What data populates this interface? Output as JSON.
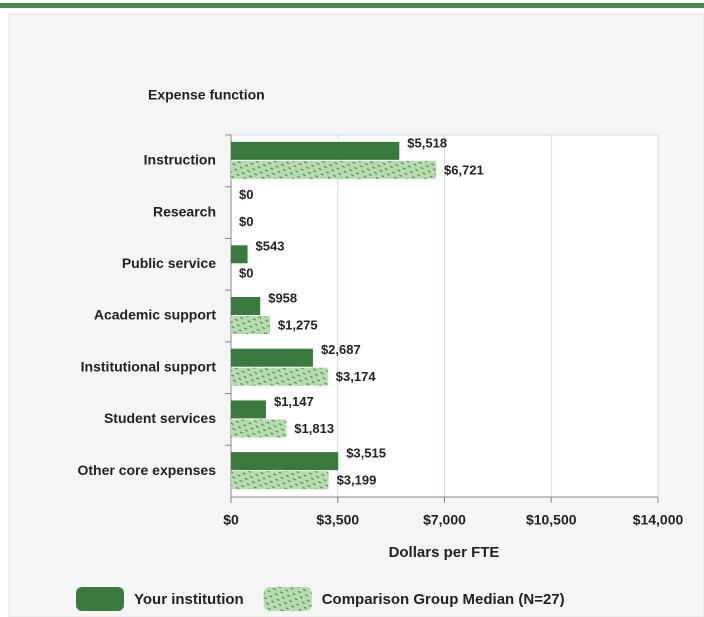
{
  "chart_data": {
    "type": "hbar",
    "y_axis_title": "Expense function",
    "x_axis_title": "Dollars per FTE",
    "categories": [
      "Instruction",
      "Research",
      "Public service",
      "Academic support",
      "Institutional support",
      "Student services",
      "Other core expenses"
    ],
    "series": [
      {
        "name": "Your institution",
        "color": "#3b7a3f",
        "values": [
          5518,
          0,
          543,
          958,
          2687,
          1147,
          3515
        ],
        "value_labels": [
          "$5,518",
          "$0",
          "$543",
          "$958",
          "$2,687",
          "$1,147",
          "$3,515"
        ]
      },
      {
        "name": "Comparison Group Median (N=27)",
        "color": "#b5dbae",
        "values": [
          6721,
          0,
          0,
          1275,
          3174,
          1813,
          3199
        ],
        "value_labels": [
          "$6,721",
          "$0",
          "$0",
          "$1,275",
          "$3,174",
          "$1,813",
          "$3,199"
        ]
      }
    ],
    "xlim": [
      0,
      14000
    ],
    "xticks": [
      {
        "value": 0,
        "label": "$0"
      },
      {
        "value": 3500,
        "label": "$3,500"
      },
      {
        "value": 7000,
        "label": "$7,000"
      },
      {
        "value": 10500,
        "label": "$10,500"
      },
      {
        "value": 14000,
        "label": "$14,000"
      }
    ],
    "grid": true
  }
}
